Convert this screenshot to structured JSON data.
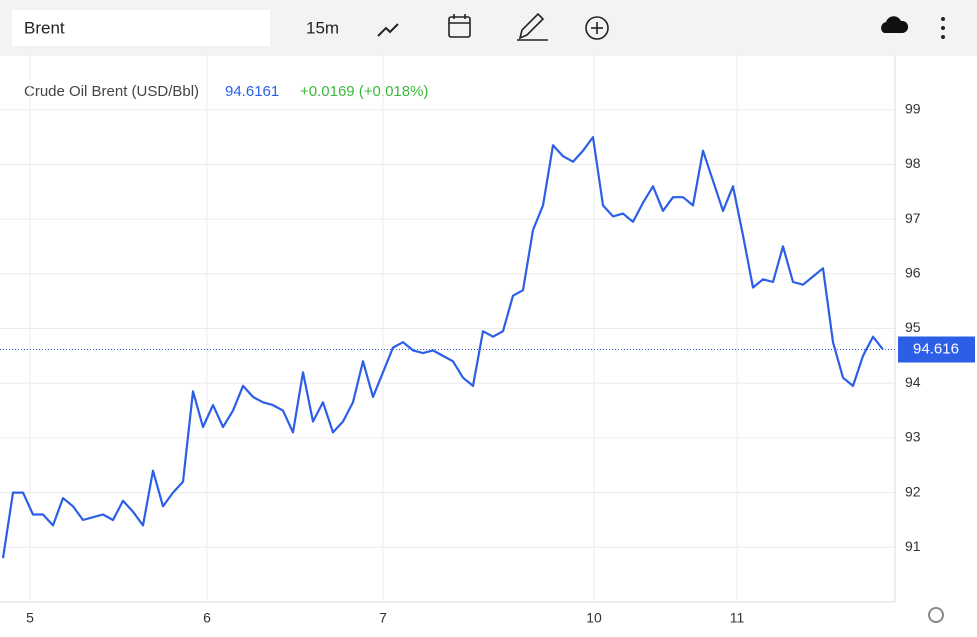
{
  "toolbar": {
    "symbol": "Brent",
    "interval": "15m"
  },
  "chart_data": {
    "type": "line",
    "legend_name": "Crude Oil Brent (USD/Bbl)",
    "legend_price": "94.6161",
    "legend_change": "+0.0169 (+0.018%)",
    "values": [
      90.8,
      92.0,
      92.0,
      91.6,
      91.6,
      91.4,
      91.9,
      91.75,
      91.5,
      91.55,
      91.6,
      91.5,
      91.85,
      91.65,
      91.4,
      92.4,
      91.75,
      92.0,
      92.2,
      93.85,
      93.2,
      93.6,
      93.2,
      93.5,
      93.95,
      93.75,
      93.65,
      93.6,
      93.5,
      93.1,
      94.2,
      93.3,
      93.65,
      93.1,
      93.3,
      93.65,
      94.4,
      93.75,
      94.2,
      94.65,
      94.75,
      94.6,
      94.55,
      94.6,
      94.5,
      94.4,
      94.1,
      93.95,
      94.95,
      94.85,
      94.95,
      95.6,
      95.7,
      96.8,
      97.25,
      98.35,
      98.15,
      98.05,
      98.25,
      98.5,
      97.25,
      97.05,
      97.1,
      96.95,
      97.3,
      97.6,
      97.15,
      97.4,
      97.4,
      97.25,
      98.25,
      97.7,
      97.15,
      97.6,
      96.7,
      95.75,
      95.9,
      95.85,
      96.5,
      95.85,
      95.8,
      95.95,
      96.1,
      94.75,
      94.1,
      93.95,
      94.5,
      94.85,
      94.616
    ],
    "color": "#2c5fe6",
    "last_value": 94.616,
    "xlim": [
      -0.3,
      89.2
    ],
    "xticks": [
      {
        "value": 2.7,
        "label": "5"
      },
      {
        "value": 20.4,
        "label": "6"
      },
      {
        "value": 38,
        "label": "7"
      },
      {
        "value": 59.1,
        "label": "10"
      },
      {
        "value": 73.4,
        "label": "11"
      }
    ],
    "ylim": [
      90,
      100
    ],
    "yticks": [
      91,
      92,
      93,
      94,
      95,
      96,
      97,
      98,
      99
    ],
    "grid": true
  }
}
